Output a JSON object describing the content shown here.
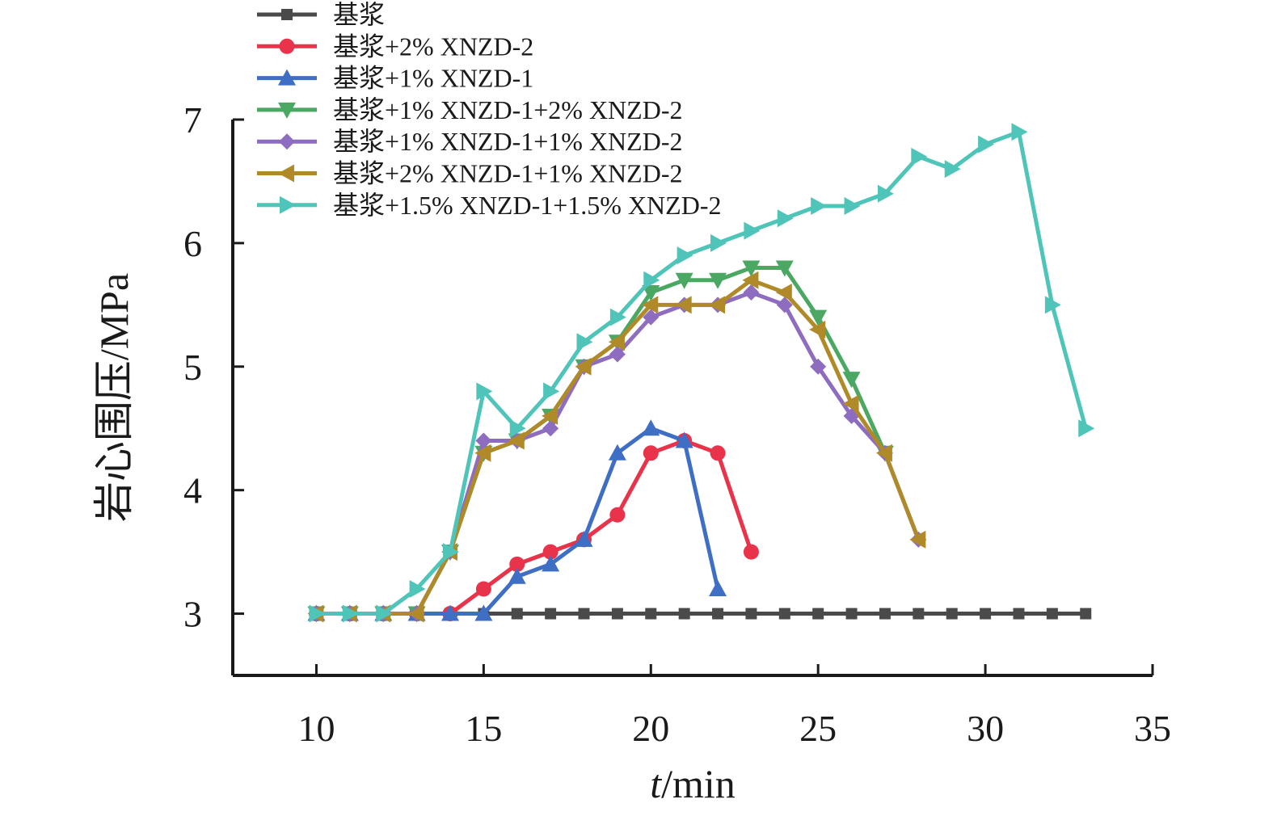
{
  "chart_data": {
    "type": "line",
    "xlabel": {
      "italic": "t",
      "rest": "/min"
    },
    "ylabel": "岩心围压/MPa",
    "xlim": [
      7.5,
      35
    ],
    "ylim": [
      2.5,
      7
    ],
    "xticks": [
      10,
      15,
      20,
      25,
      30,
      35
    ],
    "yticks": [
      3,
      4,
      5,
      6,
      7
    ],
    "legend_position": "top-left",
    "grid": false,
    "series": [
      {
        "name": "基浆",
        "color": "#4a4a4a",
        "marker": "square",
        "x": [
          10,
          11,
          12,
          13,
          14,
          15,
          16,
          17,
          18,
          19,
          20,
          21,
          22,
          23,
          24,
          25,
          26,
          27,
          28,
          29,
          30,
          31,
          32,
          33
        ],
        "y": [
          3,
          3,
          3,
          3,
          3,
          3,
          3,
          3,
          3,
          3,
          3,
          3,
          3,
          3,
          3,
          3,
          3,
          3,
          3,
          3,
          3,
          3,
          3,
          3
        ]
      },
      {
        "name": "基浆+2% XNZD-2",
        "color": "#e8334a",
        "marker": "circle",
        "x": [
          10,
          11,
          12,
          13,
          14,
          15,
          16,
          17,
          18,
          19,
          20,
          21,
          22,
          23
        ],
        "y": [
          3,
          3,
          3,
          3,
          3,
          3.2,
          3.4,
          3.5,
          3.6,
          3.8,
          4.3,
          4.4,
          4.3,
          3.5
        ]
      },
      {
        "name": "基浆+1% XNZD-1",
        "color": "#3f6fc4",
        "marker": "triangle-up",
        "x": [
          10,
          11,
          12,
          13,
          14,
          15,
          16,
          17,
          18,
          19,
          20,
          21,
          22
        ],
        "y": [
          3,
          3,
          3,
          3,
          3,
          3,
          3.3,
          3.4,
          3.6,
          4.3,
          4.5,
          4.4,
          3.2
        ]
      },
      {
        "name": "基浆+1% XNZD-1+2% XNZD-2",
        "color": "#4aa862",
        "marker": "triangle-down",
        "x": [
          10,
          11,
          12,
          13,
          14,
          15,
          16,
          17,
          18,
          19,
          20,
          21,
          22,
          23,
          24,
          25,
          26,
          27
        ],
        "y": [
          3,
          3,
          3,
          3,
          3.5,
          4.3,
          4.4,
          4.6,
          5.0,
          5.2,
          5.6,
          5.7,
          5.7,
          5.8,
          5.8,
          5.4,
          4.9,
          4.3
        ]
      },
      {
        "name": "基浆+1% XNZD-1+1% XNZD-2",
        "color": "#8e6cc0",
        "marker": "diamond",
        "x": [
          10,
          11,
          12,
          13,
          14,
          15,
          16,
          17,
          18,
          19,
          20,
          21,
          22,
          23,
          24,
          25,
          26,
          27,
          28
        ],
        "y": [
          3,
          3,
          3,
          3,
          3.5,
          4.4,
          4.4,
          4.5,
          5.0,
          5.1,
          5.4,
          5.5,
          5.5,
          5.6,
          5.5,
          5.0,
          4.6,
          4.3,
          3.6
        ]
      },
      {
        "name": "基浆+2% XNZD-1+1% XNZD-2",
        "color": "#b08a28",
        "marker": "triangle-left",
        "x": [
          10,
          11,
          12,
          13,
          14,
          15,
          16,
          17,
          18,
          19,
          20,
          21,
          22,
          23,
          24,
          25,
          26,
          27,
          28
        ],
        "y": [
          3,
          3,
          3,
          3,
          3.5,
          4.3,
          4.4,
          4.6,
          5.0,
          5.2,
          5.5,
          5.5,
          5.5,
          5.7,
          5.6,
          5.3,
          4.7,
          4.3,
          3.6
        ]
      },
      {
        "name": "基浆+1.5% XNZD-1+1.5% XNZD-2",
        "color": "#4fc4b8",
        "marker": "triangle-right",
        "x": [
          10,
          11,
          12,
          13,
          14,
          15,
          16,
          17,
          18,
          19,
          20,
          21,
          22,
          23,
          24,
          25,
          26,
          27,
          28,
          29,
          30,
          31,
          32,
          33
        ],
        "y": [
          3,
          3,
          3,
          3.2,
          3.5,
          4.8,
          4.5,
          4.8,
          5.2,
          5.4,
          5.7,
          5.9,
          6.0,
          6.1,
          6.2,
          6.3,
          6.3,
          6.4,
          6.7,
          6.6,
          6.8,
          6.9,
          5.5,
          4.5
        ]
      }
    ]
  }
}
